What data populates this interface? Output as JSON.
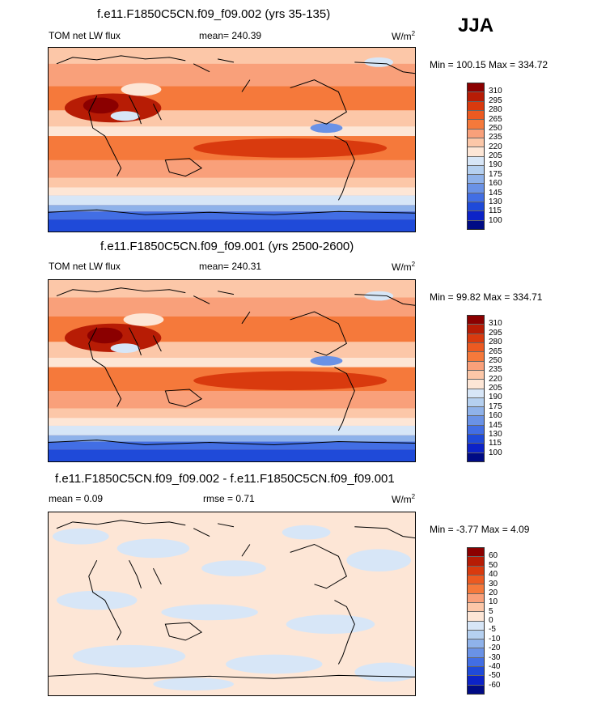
{
  "season": "JJA",
  "panels": [
    {
      "title": "f.e11.F1850C5CN.f09_f09.002 (yrs 35-135)",
      "left_label": "TOM net LW flux",
      "center_label": "mean= 240.39",
      "units": "W/m",
      "units_exp": "2",
      "minmax": "Min = 100.15 Max = 334.72"
    },
    {
      "title": "f.e11.F1850C5CN.f09_f09.001 (yrs 2500-2600)",
      "left_label": "TOM net LW flux",
      "center_label": "mean= 240.31",
      "units": "W/m",
      "units_exp": "2",
      "minmax": "Min =  99.82 Max = 334.71"
    },
    {
      "title": "f.e11.F1850C5CN.f09_f09.002 - f.e11.F1850C5CN.f09_f09.001",
      "left_label": "mean =   0.09",
      "center_label": "rmse =   0.71",
      "units": "W/m",
      "units_exp": "2",
      "minmax": "Min =  -3.77 Max =   4.09"
    }
  ],
  "chart_data": [
    {
      "type": "heatmap",
      "title": "f.e11.F1850C5CN.f09_f09.002 (yrs 35-135)",
      "variable": "TOM net LW flux",
      "units": "W/m2",
      "mean": 240.39,
      "min": 100.15,
      "max": 334.72,
      "levels": [
        "310",
        "295",
        "280",
        "265",
        "250",
        "235",
        "220",
        "205",
        "190",
        "175",
        "160",
        "145",
        "130",
        "115",
        "100"
      ],
      "colors": [
        "#8b0000",
        "#b71c05",
        "#d93a0e",
        "#ec5a21",
        "#f5793b",
        "#f9a07a",
        "#fcc7a8",
        "#fde6d6",
        "#d7e6f7",
        "#b5d0f0",
        "#8fb2ea",
        "#6a92e6",
        "#426ee4",
        "#1f4ad9",
        "#0c23c8",
        "#000b85"
      ]
    },
    {
      "type": "heatmap",
      "title": "f.e11.F1850C5CN.f09_f09.001 (yrs 2500-2600)",
      "variable": "TOM net LW flux",
      "units": "W/m2",
      "mean": 240.31,
      "min": 99.82,
      "max": 334.71,
      "levels": [
        "310",
        "295",
        "280",
        "265",
        "250",
        "235",
        "220",
        "205",
        "190",
        "175",
        "160",
        "145",
        "130",
        "115",
        "100"
      ],
      "colors": [
        "#8b0000",
        "#b71c05",
        "#d93a0e",
        "#ec5a21",
        "#f5793b",
        "#f9a07a",
        "#fcc7a8",
        "#fde6d6",
        "#d7e6f7",
        "#b5d0f0",
        "#8fb2ea",
        "#6a92e6",
        "#426ee4",
        "#1f4ad9",
        "#0c23c8",
        "#000b85"
      ]
    },
    {
      "type": "heatmap",
      "title": "f.e11.F1850C5CN.f09_f09.002 - f.e11.F1850C5CN.f09_f09.001",
      "units": "W/m2",
      "mean": 0.09,
      "rmse": 0.71,
      "min": -3.77,
      "max": 4.09,
      "levels": [
        "60",
        "50",
        "40",
        "30",
        "20",
        "10",
        "5",
        "0",
        "-5",
        "-10",
        "-20",
        "-30",
        "-40",
        "-50",
        "-60"
      ],
      "colors": [
        "#8b0000",
        "#b71c05",
        "#d93a0e",
        "#ec5a21",
        "#f5793b",
        "#f9a07a",
        "#fcc7a8",
        "#fde6d6",
        "#d7e6f7",
        "#b5d0f0",
        "#8fb2ea",
        "#6a92e6",
        "#426ee4",
        "#1f4ad9",
        "#0c23c8",
        "#000b85"
      ]
    }
  ]
}
